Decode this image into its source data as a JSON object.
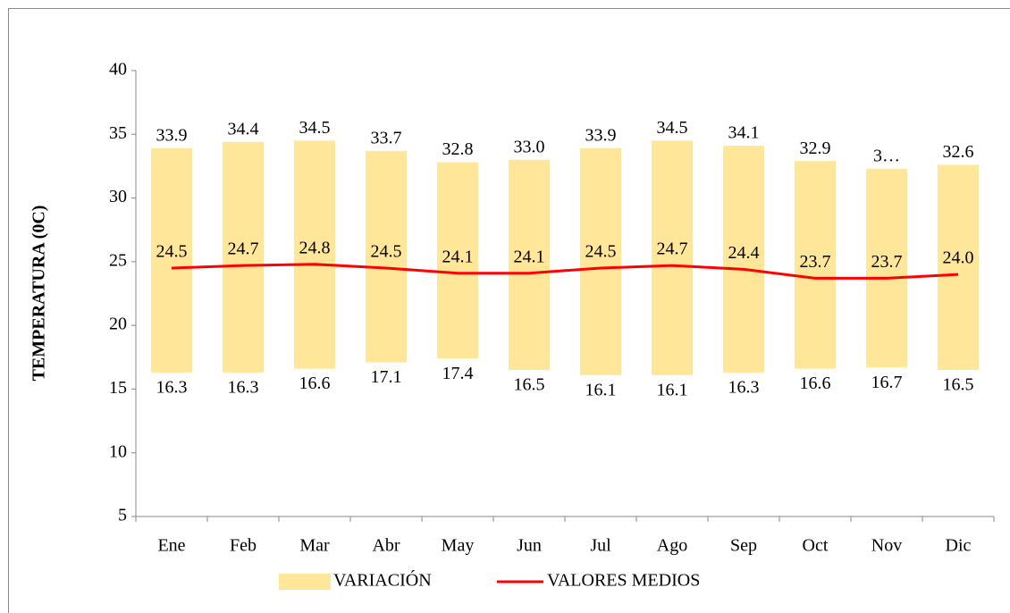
{
  "chart_data": {
    "type": "range-bar-line",
    "y_label": "TEMPERATURA (0C)",
    "categories": [
      "Ene",
      "Feb",
      "Mar",
      "Abr",
      "May",
      "Jun",
      "Jul",
      "Ago",
      "Sep",
      "Oct",
      "Nov",
      "Dic"
    ],
    "series": [
      {
        "name": "VARIACIÓN",
        "type": "range",
        "color": "#ffe699",
        "low": [
          16.3,
          16.3,
          16.6,
          17.1,
          17.4,
          16.5,
          16.1,
          16.1,
          16.3,
          16.6,
          16.7,
          16.5
        ],
        "high": [
          33.9,
          34.4,
          34.5,
          33.7,
          32.8,
          33.0,
          33.9,
          34.5,
          34.1,
          32.9,
          32.3,
          32.6
        ],
        "high_value_labels": [
          "33.9",
          "34.4",
          "34.5",
          "33.7",
          "32.8",
          "33.0",
          "33.9",
          "34.5",
          "34.1",
          "32.9",
          "3…",
          "32.6"
        ]
      },
      {
        "name": "VALORES MEDIOS",
        "type": "line",
        "color": "#ff0000",
        "values": [
          24.5,
          24.7,
          24.8,
          24.5,
          24.1,
          24.1,
          24.5,
          24.7,
          24.4,
          23.7,
          23.7,
          24.0
        ],
        "value_labels": [
          "24.5",
          "24.7",
          "24.8",
          "24.5",
          "24.1",
          "24.1",
          "24.5",
          "24.7",
          "24.4",
          "23.7",
          "23.7",
          "24.0"
        ]
      }
    ],
    "ylim": [
      5,
      40
    ],
    "yticks": [
      5,
      10,
      15,
      20,
      25,
      30,
      35,
      40
    ],
    "grid": false,
    "legend": "bottom"
  }
}
